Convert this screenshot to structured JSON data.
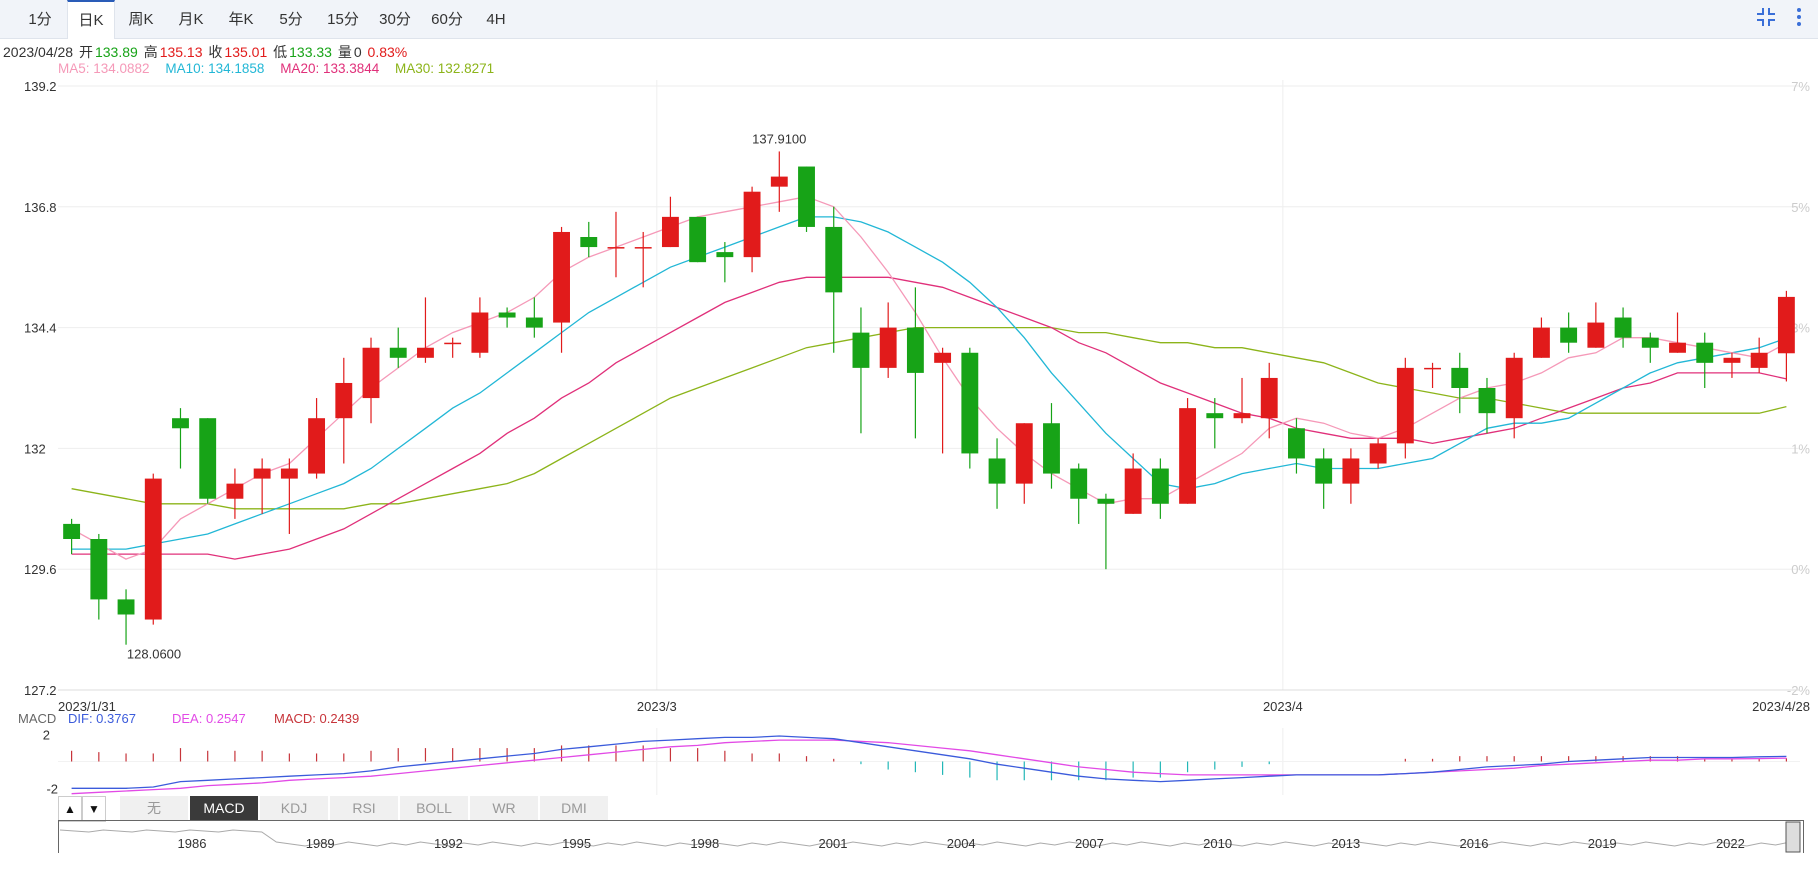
{
  "period_tabs": [
    "1分",
    "日K",
    "周K",
    "月K",
    "年K",
    "5分",
    "15分",
    "30分",
    "60分",
    "4H"
  ],
  "active_tab": "日K",
  "icons": {
    "fullscreen": "compress-icon",
    "menu": "more-vertical-icon"
  },
  "info": {
    "date": "2023/04/28",
    "open_label": "开",
    "open": "133.89",
    "high_label": "高",
    "high": "135.13",
    "close_label": "收",
    "close": "135.01",
    "low_label": "低",
    "low": "133.33",
    "vol_label": "量",
    "vol": "0",
    "change": "0.83%"
  },
  "ma_legend": {
    "ma5": "MA5: 134.0882",
    "ma10": "MA10: 134.1858",
    "ma20": "MA20: 133.3844",
    "ma30": "MA30: 132.8271"
  },
  "macd_legend": {
    "title": "MACD",
    "dif": "DIF: 0.3767",
    "dea": "DEA: 0.2547",
    "macd": "MACD: 0.2439"
  },
  "indicator_tabs": [
    "无",
    "MACD",
    "KDJ",
    "RSI",
    "BOLL",
    "WR",
    "DMI"
  ],
  "active_indicator": "MACD",
  "navigator_years": [
    "1986",
    "1989",
    "1992",
    "1995",
    "1998",
    "2001",
    "2004",
    "2007",
    "2010",
    "2013",
    "2016",
    "2019",
    "2022"
  ],
  "colors": {
    "up": "#e11b1b",
    "down": "#17a317",
    "ma5": "#f599b8",
    "ma10": "#22b7d6",
    "ma20": "#e0307a",
    "ma30": "#8cb41a",
    "dif": "#3b5bdb",
    "dea": "#e24ae6",
    "macd": "#c7343a",
    "grid": "#eeeeee"
  },
  "chart_data": {
    "type": "candlestick",
    "ylim": [
      127.2,
      139.2
    ],
    "yticks": [
      "139.2",
      "136.8",
      "134.4",
      "132",
      "129.6",
      "127.2"
    ],
    "pct_ticks": [
      "7%",
      "5%",
      "3%",
      "1%",
      "0%",
      "-2%"
    ],
    "pct_range": [
      -2,
      7
    ],
    "xlabels": [
      {
        "i": 0,
        "label": "2023/1/31"
      },
      {
        "i": 22,
        "label": "2023/3"
      },
      {
        "i": 45,
        "label": "2023/4"
      },
      {
        "i": 63,
        "label": "2023/4/28"
      }
    ],
    "high_annotation": "137.9100",
    "low_annotation": "128.0600",
    "candles": [
      [
        130.5,
        130.2,
        130.6,
        129.9
      ],
      [
        130.2,
        129.0,
        130.3,
        128.6
      ],
      [
        129.0,
        128.7,
        129.2,
        128.1
      ],
      [
        128.6,
        131.4,
        131.5,
        128.5
      ],
      [
        132.6,
        132.4,
        132.8,
        131.6
      ],
      [
        132.6,
        131.0,
        132.6,
        130.9
      ],
      [
        131.0,
        131.3,
        131.6,
        130.6
      ],
      [
        131.4,
        131.6,
        131.8,
        130.7
      ],
      [
        131.4,
        131.6,
        131.8,
        130.3
      ],
      [
        131.5,
        132.6,
        133.0,
        131.4
      ],
      [
        132.6,
        133.3,
        133.8,
        131.7
      ],
      [
        133.0,
        134.0,
        134.2,
        132.5
      ],
      [
        134.0,
        133.8,
        134.4,
        133.6
      ],
      [
        133.8,
        134.0,
        135.0,
        133.7
      ],
      [
        134.1,
        134.1,
        134.2,
        133.8
      ],
      [
        133.9,
        134.7,
        135.0,
        133.8
      ],
      [
        134.7,
        134.6,
        134.8,
        134.4
      ],
      [
        134.6,
        134.4,
        135.0,
        134.2
      ],
      [
        134.5,
        136.3,
        136.4,
        133.9
      ],
      [
        136.2,
        136.0,
        136.5,
        135.8
      ],
      [
        136.0,
        136.0,
        136.7,
        135.4
      ],
      [
        136.0,
        136.0,
        136.3,
        135.2
      ],
      [
        136.0,
        136.6,
        137.0,
        136.0
      ],
      [
        136.6,
        135.7,
        136.6,
        135.7
      ],
      [
        135.9,
        135.8,
        136.1,
        135.3
      ],
      [
        135.8,
        137.1,
        137.2,
        135.5
      ],
      [
        137.2,
        137.4,
        137.9,
        136.7
      ],
      [
        137.6,
        136.4,
        137.6,
        136.3
      ],
      [
        136.4,
        135.1,
        136.8,
        133.9
      ],
      [
        134.3,
        133.6,
        134.8,
        132.3
      ],
      [
        133.6,
        134.4,
        134.9,
        133.4
      ],
      [
        134.4,
        133.5,
        135.2,
        132.2
      ],
      [
        133.7,
        133.9,
        134.0,
        131.9
      ],
      [
        133.9,
        131.9,
        134.0,
        131.6
      ],
      [
        131.8,
        131.3,
        132.2,
        130.8
      ],
      [
        131.3,
        132.5,
        132.5,
        130.9
      ],
      [
        132.5,
        131.5,
        132.9,
        131.2
      ],
      [
        131.6,
        131.0,
        131.7,
        130.5
      ],
      [
        131.0,
        130.9,
        131.1,
        129.6
      ],
      [
        130.7,
        131.6,
        131.9,
        130.7
      ],
      [
        131.6,
        130.9,
        131.8,
        130.6
      ],
      [
        130.9,
        132.8,
        133.0,
        130.9
      ],
      [
        132.7,
        132.6,
        133.0,
        132.0
      ],
      [
        132.6,
        132.7,
        133.4,
        132.5
      ],
      [
        132.6,
        133.4,
        133.7,
        132.2
      ],
      [
        132.4,
        131.8,
        132.6,
        131.5
      ],
      [
        131.8,
        131.3,
        132.0,
        130.8
      ],
      [
        131.3,
        131.8,
        132.0,
        130.9
      ],
      [
        131.7,
        132.1,
        132.2,
        131.6
      ],
      [
        132.1,
        133.6,
        133.8,
        131.8
      ],
      [
        133.6,
        133.6,
        133.7,
        133.2
      ],
      [
        133.6,
        133.2,
        133.9,
        132.7
      ],
      [
        133.2,
        132.7,
        133.4,
        132.3
      ],
      [
        132.6,
        133.8,
        133.9,
        132.2
      ],
      [
        133.8,
        134.4,
        134.6,
        133.8
      ],
      [
        134.4,
        134.1,
        134.7,
        133.9
      ],
      [
        134.0,
        134.5,
        134.9,
        134.0
      ],
      [
        134.6,
        134.2,
        134.8,
        134.0
      ],
      [
        134.2,
        134.0,
        134.3,
        133.7
      ],
      [
        133.9,
        134.1,
        134.7,
        133.9
      ],
      [
        134.1,
        133.7,
        134.3,
        133.2
      ],
      [
        133.7,
        133.8,
        133.9,
        133.4
      ],
      [
        133.6,
        133.9,
        134.2,
        133.5
      ],
      [
        133.89,
        135.01,
        135.13,
        133.33
      ]
    ],
    "ma5": [
      130.4,
      130.1,
      129.8,
      130.0,
      130.6,
      130.9,
      131.2,
      131.5,
      131.7,
      132.2,
      132.7,
      133.2,
      133.6,
      134.0,
      134.3,
      134.5,
      134.7,
      135.0,
      135.5,
      135.8,
      136.0,
      136.2,
      136.4,
      136.6,
      136.7,
      136.8,
      136.9,
      137.0,
      136.8,
      136.2,
      135.5,
      134.7,
      133.8,
      133.0,
      132.4,
      131.9,
      131.5,
      131.2,
      130.9,
      131.0,
      131.0,
      131.3,
      131.6,
      131.9,
      132.4,
      132.6,
      132.5,
      132.3,
      132.2,
      132.4,
      132.7,
      133.0,
      133.2,
      133.3,
      133.5,
      133.8,
      133.9,
      134.2,
      134.2,
      134.1,
      134.0,
      133.9,
      133.8,
      134.09
    ],
    "ma10": [
      130.0,
      130.0,
      130.0,
      130.1,
      130.2,
      130.3,
      130.5,
      130.7,
      130.9,
      131.1,
      131.3,
      131.6,
      132.0,
      132.4,
      132.8,
      133.1,
      133.5,
      133.9,
      134.3,
      134.7,
      135.0,
      135.3,
      135.6,
      135.8,
      136.0,
      136.2,
      136.4,
      136.6,
      136.6,
      136.5,
      136.3,
      136.0,
      135.7,
      135.3,
      134.8,
      134.2,
      133.5,
      132.9,
      132.3,
      131.8,
      131.3,
      131.2,
      131.3,
      131.5,
      131.6,
      131.7,
      131.6,
      131.6,
      131.6,
      131.7,
      131.8,
      132.1,
      132.4,
      132.5,
      132.5,
      132.6,
      132.9,
      133.2,
      133.5,
      133.7,
      133.8,
      133.9,
      134.0,
      134.19
    ],
    "ma20": [
      129.9,
      129.9,
      129.9,
      129.9,
      129.9,
      129.9,
      129.8,
      129.9,
      130.0,
      130.2,
      130.4,
      130.7,
      131.0,
      131.3,
      131.6,
      131.9,
      132.3,
      132.6,
      133.0,
      133.3,
      133.7,
      134.0,
      134.3,
      134.6,
      134.9,
      135.1,
      135.3,
      135.4,
      135.4,
      135.4,
      135.4,
      135.3,
      135.2,
      135.0,
      134.8,
      134.6,
      134.4,
      134.1,
      133.9,
      133.6,
      133.3,
      133.1,
      132.9,
      132.7,
      132.6,
      132.4,
      132.3,
      132.2,
      132.2,
      132.2,
      132.1,
      132.2,
      132.3,
      132.4,
      132.6,
      132.8,
      133.0,
      133.2,
      133.3,
      133.5,
      133.5,
      133.5,
      133.5,
      133.38
    ],
    "ma30": [
      131.2,
      131.1,
      131.0,
      130.9,
      130.9,
      130.9,
      130.8,
      130.8,
      130.8,
      130.8,
      130.8,
      130.9,
      130.9,
      131.0,
      131.1,
      131.2,
      131.3,
      131.5,
      131.8,
      132.1,
      132.4,
      132.7,
      133.0,
      133.2,
      133.4,
      133.6,
      133.8,
      134.0,
      134.1,
      134.2,
      134.3,
      134.4,
      134.4,
      134.4,
      134.4,
      134.4,
      134.4,
      134.3,
      134.3,
      134.2,
      134.1,
      134.1,
      134.0,
      134.0,
      133.9,
      133.8,
      133.7,
      133.5,
      133.3,
      133.2,
      133.1,
      133.0,
      133.0,
      132.9,
      132.8,
      132.7,
      132.7,
      132.7,
      132.7,
      132.7,
      132.7,
      132.7,
      132.7,
      132.83
    ],
    "macd_panel": {
      "ylim": [
        -2.5,
        2.5
      ],
      "yticks": [
        "2",
        "-2"
      ],
      "dif": [
        -2.0,
        -2.0,
        -2.0,
        -1.9,
        -1.5,
        -1.4,
        -1.3,
        -1.2,
        -1.1,
        -1.0,
        -0.9,
        -0.7,
        -0.4,
        -0.2,
        0.0,
        0.2,
        0.4,
        0.6,
        0.9,
        1.1,
        1.3,
        1.5,
        1.6,
        1.7,
        1.8,
        1.8,
        1.9,
        1.8,
        1.7,
        1.4,
        1.1,
        0.8,
        0.5,
        0.2,
        -0.2,
        -0.5,
        -0.8,
        -1.1,
        -1.3,
        -1.4,
        -1.5,
        -1.4,
        -1.3,
        -1.2,
        -1.1,
        -1.0,
        -1.0,
        -1.0,
        -1.0,
        -0.9,
        -0.8,
        -0.6,
        -0.4,
        -0.3,
        -0.2,
        0.0,
        0.1,
        0.2,
        0.3,
        0.3,
        0.3,
        0.3,
        0.35,
        0.38
      ],
      "dea": [
        -2.4,
        -2.3,
        -2.2,
        -2.1,
        -2.0,
        -1.8,
        -1.7,
        -1.6,
        -1.4,
        -1.3,
        -1.2,
        -1.1,
        -0.9,
        -0.7,
        -0.5,
        -0.3,
        -0.1,
        0.1,
        0.3,
        0.5,
        0.7,
        0.9,
        1.1,
        1.2,
        1.4,
        1.5,
        1.6,
        1.6,
        1.6,
        1.5,
        1.4,
        1.2,
        1.0,
        0.8,
        0.5,
        0.2,
        -0.1,
        -0.4,
        -0.6,
        -0.8,
        -0.9,
        -1.0,
        -1.0,
        -1.0,
        -1.0,
        -1.0,
        -1.0,
        -1.0,
        -1.0,
        -0.9,
        -0.8,
        -0.7,
        -0.6,
        -0.5,
        -0.3,
        -0.2,
        -0.1,
        0.0,
        0.1,
        0.1,
        0.2,
        0.2,
        0.22,
        0.25
      ],
      "macd": [
        0.8,
        0.7,
        0.6,
        0.6,
        1.0,
        0.8,
        0.8,
        0.8,
        0.6,
        0.6,
        0.6,
        0.8,
        1.0,
        1.0,
        1.0,
        1.0,
        1.0,
        1.0,
        1.2,
        1.2,
        1.2,
        1.2,
        1.0,
        1.0,
        0.8,
        0.6,
        0.6,
        0.4,
        0.2,
        -0.2,
        -0.6,
        -0.8,
        -1.0,
        -1.2,
        -1.4,
        -1.4,
        -1.4,
        -1.4,
        -1.4,
        -1.2,
        -1.2,
        -0.8,
        -0.6,
        -0.4,
        -0.2,
        0.0,
        0.0,
        0.0,
        0.0,
        0.2,
        0.2,
        0.4,
        0.4,
        0.4,
        0.4,
        0.4,
        0.4,
        0.4,
        0.4,
        0.4,
        0.2,
        0.2,
        0.2,
        0.24
      ]
    }
  }
}
